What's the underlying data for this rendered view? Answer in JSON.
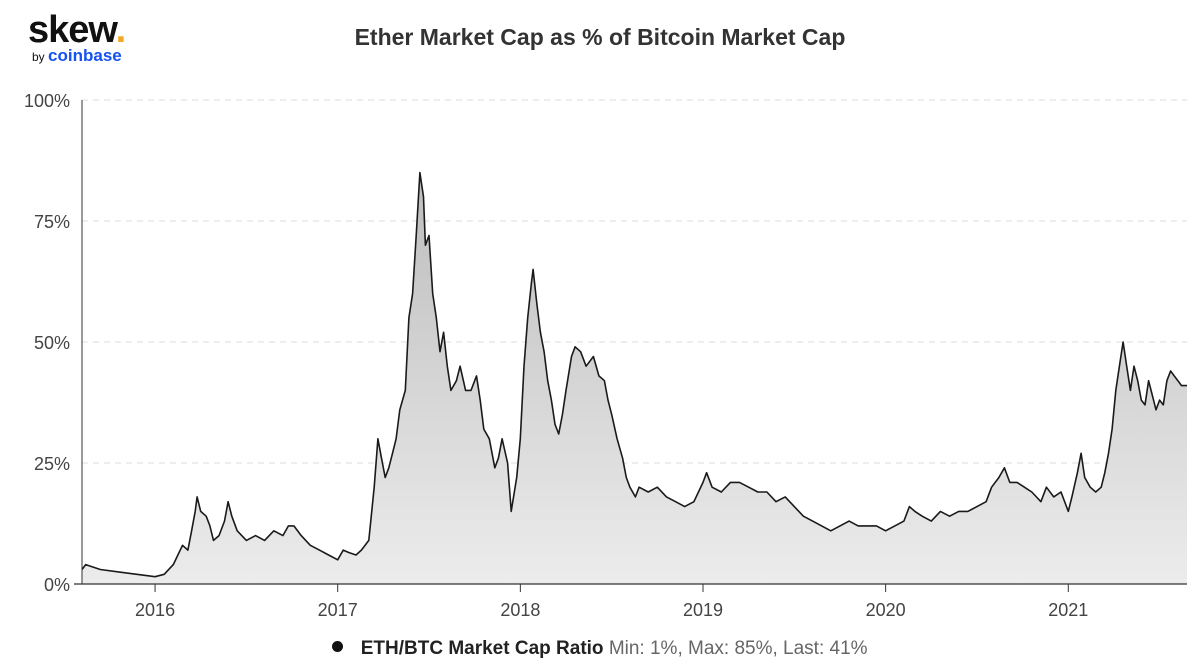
{
  "logo": {
    "main": "skew",
    "dot": ".",
    "by": "by",
    "brand": "coinbase"
  },
  "chart_data": {
    "type": "area",
    "title": "Ether Market Cap as % of Bitcoin Market Cap",
    "xlabel": "",
    "ylabel": "",
    "y_ticks": [
      0,
      25,
      50,
      75,
      100
    ],
    "y_tick_labels": [
      "0%",
      "25%",
      "50%",
      "75%",
      "100%"
    ],
    "ylim": [
      0,
      100
    ],
    "xlim": [
      2015.6,
      2021.65
    ],
    "x_ticks": [
      2016,
      2017,
      2018,
      2019,
      2020,
      2021
    ],
    "x_tick_labels": [
      "2016",
      "2017",
      "2018",
      "2019",
      "2020",
      "2021"
    ],
    "grid": "horizontal-dashed",
    "colors": {
      "line": "#1a1a1a",
      "fill_top": "#bdbdbd",
      "fill_bottom": "#ececec"
    },
    "series": [
      {
        "name": "ETH/BTC Market Cap Ratio",
        "stats_text": "Min: 1%, Max: 85%, Last: 41%",
        "points": [
          [
            2015.6,
            3
          ],
          [
            2015.62,
            4
          ],
          [
            2015.7,
            3
          ],
          [
            2015.8,
            2.5
          ],
          [
            2015.9,
            2
          ],
          [
            2016.0,
            1.5
          ],
          [
            2016.05,
            2
          ],
          [
            2016.1,
            4
          ],
          [
            2016.15,
            8
          ],
          [
            2016.18,
            7
          ],
          [
            2016.2,
            11
          ],
          [
            2016.22,
            15
          ],
          [
            2016.23,
            18
          ],
          [
            2016.25,
            15
          ],
          [
            2016.28,
            14
          ],
          [
            2016.3,
            12
          ],
          [
            2016.32,
            9
          ],
          [
            2016.35,
            10
          ],
          [
            2016.38,
            13
          ],
          [
            2016.4,
            17
          ],
          [
            2016.42,
            14
          ],
          [
            2016.45,
            11
          ],
          [
            2016.5,
            9
          ],
          [
            2016.55,
            10
          ],
          [
            2016.6,
            9
          ],
          [
            2016.65,
            11
          ],
          [
            2016.7,
            10
          ],
          [
            2016.73,
            12
          ],
          [
            2016.76,
            12
          ],
          [
            2016.8,
            10
          ],
          [
            2016.85,
            8
          ],
          [
            2016.9,
            7
          ],
          [
            2016.95,
            6
          ],
          [
            2017.0,
            5
          ],
          [
            2017.03,
            7
          ],
          [
            2017.06,
            6.5
          ],
          [
            2017.1,
            6
          ],
          [
            2017.13,
            7
          ],
          [
            2017.17,
            9
          ],
          [
            2017.2,
            20
          ],
          [
            2017.22,
            30
          ],
          [
            2017.24,
            26
          ],
          [
            2017.26,
            22
          ],
          [
            2017.28,
            24
          ],
          [
            2017.3,
            27
          ],
          [
            2017.32,
            30
          ],
          [
            2017.34,
            36
          ],
          [
            2017.37,
            40
          ],
          [
            2017.39,
            55
          ],
          [
            2017.41,
            60
          ],
          [
            2017.43,
            72
          ],
          [
            2017.45,
            85
          ],
          [
            2017.47,
            80
          ],
          [
            2017.48,
            70
          ],
          [
            2017.5,
            72
          ],
          [
            2017.52,
            60
          ],
          [
            2017.54,
            55
          ],
          [
            2017.56,
            48
          ],
          [
            2017.58,
            52
          ],
          [
            2017.6,
            45
          ],
          [
            2017.62,
            40
          ],
          [
            2017.65,
            42
          ],
          [
            2017.67,
            45
          ],
          [
            2017.7,
            40
          ],
          [
            2017.73,
            40
          ],
          [
            2017.76,
            43
          ],
          [
            2017.78,
            38
          ],
          [
            2017.8,
            32
          ],
          [
            2017.83,
            30
          ],
          [
            2017.86,
            24
          ],
          [
            2017.88,
            26
          ],
          [
            2017.9,
            30
          ],
          [
            2017.93,
            25
          ],
          [
            2017.95,
            15
          ],
          [
            2017.98,
            22
          ],
          [
            2018.0,
            30
          ],
          [
            2018.02,
            45
          ],
          [
            2018.04,
            55
          ],
          [
            2018.06,
            62
          ],
          [
            2018.07,
            65
          ],
          [
            2018.09,
            58
          ],
          [
            2018.11,
            52
          ],
          [
            2018.13,
            48
          ],
          [
            2018.15,
            42
          ],
          [
            2018.17,
            38
          ],
          [
            2018.19,
            33
          ],
          [
            2018.21,
            31
          ],
          [
            2018.23,
            35
          ],
          [
            2018.25,
            40
          ],
          [
            2018.28,
            47
          ],
          [
            2018.3,
            49
          ],
          [
            2018.33,
            48
          ],
          [
            2018.36,
            45
          ],
          [
            2018.4,
            47
          ],
          [
            2018.43,
            43
          ],
          [
            2018.46,
            42
          ],
          [
            2018.48,
            38
          ],
          [
            2018.5,
            35
          ],
          [
            2018.53,
            30
          ],
          [
            2018.56,
            26
          ],
          [
            2018.58,
            22
          ],
          [
            2018.6,
            20
          ],
          [
            2018.63,
            18
          ],
          [
            2018.65,
            20
          ],
          [
            2018.7,
            19
          ],
          [
            2018.75,
            20
          ],
          [
            2018.8,
            18
          ],
          [
            2018.85,
            17
          ],
          [
            2018.9,
            16
          ],
          [
            2018.95,
            17
          ],
          [
            2019.0,
            21
          ],
          [
            2019.02,
            23
          ],
          [
            2019.05,
            20
          ],
          [
            2019.1,
            19
          ],
          [
            2019.15,
            21
          ],
          [
            2019.2,
            21
          ],
          [
            2019.25,
            20
          ],
          [
            2019.3,
            19
          ],
          [
            2019.35,
            19
          ],
          [
            2019.4,
            17
          ],
          [
            2019.45,
            18
          ],
          [
            2019.5,
            16
          ],
          [
            2019.55,
            14
          ],
          [
            2019.6,
            13
          ],
          [
            2019.65,
            12
          ],
          [
            2019.7,
            11
          ],
          [
            2019.75,
            12
          ],
          [
            2019.8,
            13
          ],
          [
            2019.85,
            12
          ],
          [
            2019.9,
            12
          ],
          [
            2019.95,
            12
          ],
          [
            2020.0,
            11
          ],
          [
            2020.05,
            12
          ],
          [
            2020.1,
            13
          ],
          [
            2020.13,
            16
          ],
          [
            2020.16,
            15
          ],
          [
            2020.2,
            14
          ],
          [
            2020.25,
            13
          ],
          [
            2020.3,
            15
          ],
          [
            2020.35,
            14
          ],
          [
            2020.4,
            15
          ],
          [
            2020.45,
            15
          ],
          [
            2020.5,
            16
          ],
          [
            2020.55,
            17
          ],
          [
            2020.58,
            20
          ],
          [
            2020.62,
            22
          ],
          [
            2020.65,
            24
          ],
          [
            2020.68,
            21
          ],
          [
            2020.72,
            21
          ],
          [
            2020.76,
            20
          ],
          [
            2020.8,
            19
          ],
          [
            2020.85,
            17
          ],
          [
            2020.88,
            20
          ],
          [
            2020.92,
            18
          ],
          [
            2020.96,
            19
          ],
          [
            2021.0,
            15
          ],
          [
            2021.02,
            18
          ],
          [
            2021.05,
            23
          ],
          [
            2021.07,
            27
          ],
          [
            2021.09,
            22
          ],
          [
            2021.12,
            20
          ],
          [
            2021.15,
            19
          ],
          [
            2021.18,
            20
          ],
          [
            2021.2,
            23
          ],
          [
            2021.22,
            27
          ],
          [
            2021.24,
            32
          ],
          [
            2021.26,
            40
          ],
          [
            2021.28,
            45
          ],
          [
            2021.3,
            50
          ],
          [
            2021.32,
            45
          ],
          [
            2021.34,
            40
          ],
          [
            2021.36,
            45
          ],
          [
            2021.38,
            42
          ],
          [
            2021.4,
            38
          ],
          [
            2021.42,
            37
          ],
          [
            2021.44,
            42
          ],
          [
            2021.46,
            39
          ],
          [
            2021.48,
            36
          ],
          [
            2021.5,
            38
          ],
          [
            2021.52,
            37
          ],
          [
            2021.54,
            42
          ],
          [
            2021.56,
            44
          ],
          [
            2021.58,
            43
          ],
          [
            2021.6,
            42
          ],
          [
            2021.62,
            41
          ],
          [
            2021.65,
            41
          ]
        ]
      }
    ]
  }
}
